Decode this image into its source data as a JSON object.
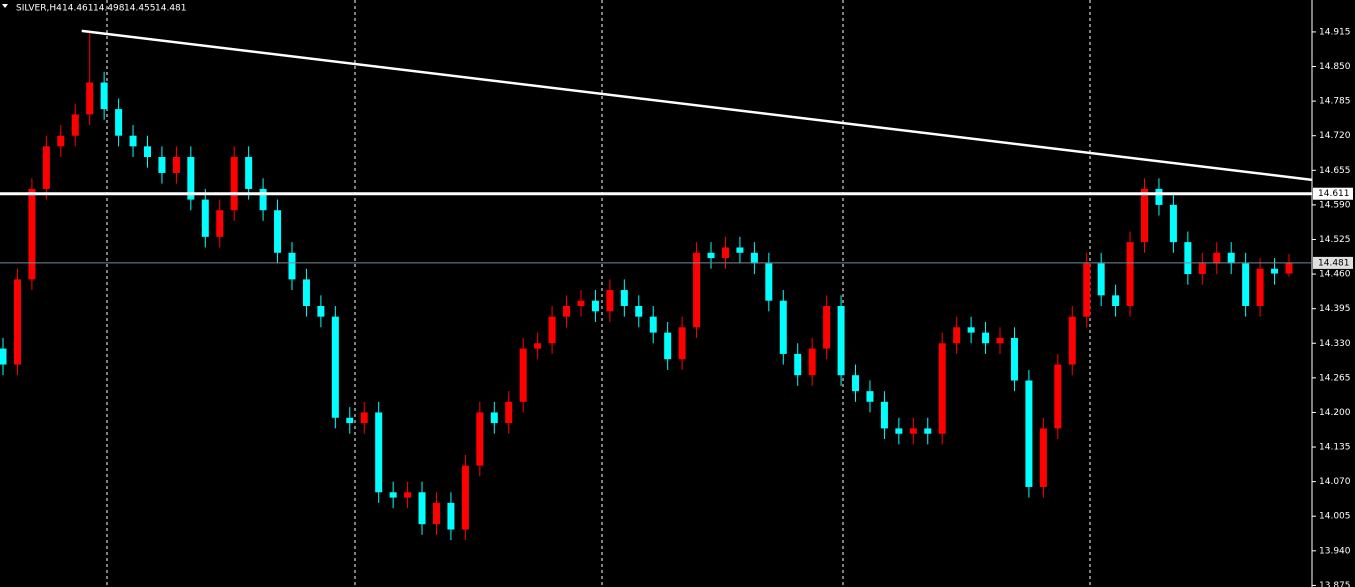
{
  "chart_data": {
    "type": "candlestick",
    "title": "SILVER,H4",
    "up_color": "#ff0000",
    "down_color": "#00ffff",
    "open": [
      14.32,
      14.29,
      14.45,
      14.62,
      14.7,
      14.72,
      14.76,
      14.82,
      14.77,
      14.72,
      14.7,
      14.68,
      14.65,
      14.68,
      14.6,
      14.53,
      14.58,
      14.68,
      14.62,
      14.58,
      14.5,
      14.45,
      14.4,
      14.38,
      14.19,
      14.18,
      14.2,
      14.05,
      14.04,
      14.05,
      13.99,
      14.03,
      13.98,
      14.1,
      14.2,
      14.18,
      14.22,
      14.32,
      14.33,
      14.38,
      14.4,
      14.41,
      14.39,
      14.43,
      14.4,
      14.38,
      14.35,
      14.3,
      14.36,
      14.5,
      14.49,
      14.51,
      14.5,
      14.48,
      14.41,
      14.31,
      14.27,
      14.32,
      14.4,
      14.27,
      14.24,
      14.22,
      14.17,
      14.16,
      14.17,
      14.16,
      14.33,
      14.36,
      14.35,
      14.33,
      14.34,
      14.26,
      14.06,
      14.17,
      14.29,
      14.38,
      14.48,
      14.42,
      14.4,
      14.52,
      14.62,
      14.59,
      14.52,
      14.46,
      14.48,
      14.5,
      14.48,
      14.4,
      14.47,
      14.461
    ],
    "high": [
      14.34,
      14.47,
      14.64,
      14.72,
      14.74,
      14.78,
      14.917,
      14.84,
      14.79,
      14.74,
      14.72,
      14.7,
      14.7,
      14.7,
      14.62,
      14.6,
      14.7,
      14.7,
      14.64,
      14.6,
      14.52,
      14.47,
      14.42,
      14.4,
      14.21,
      14.22,
      14.22,
      14.07,
      14.07,
      14.07,
      14.05,
      14.05,
      14.12,
      14.22,
      14.22,
      14.24,
      14.34,
      14.35,
      14.4,
      14.42,
      14.43,
      14.43,
      14.45,
      14.45,
      14.42,
      14.4,
      14.37,
      14.38,
      14.52,
      14.52,
      14.53,
      14.53,
      14.52,
      14.5,
      14.43,
      14.33,
      14.34,
      14.42,
      14.42,
      14.29,
      14.26,
      14.24,
      14.19,
      14.19,
      14.19,
      14.35,
      14.38,
      14.38,
      14.37,
      14.36,
      14.36,
      14.28,
      14.19,
      14.31,
      14.4,
      14.5,
      14.5,
      14.44,
      14.54,
      14.64,
      14.64,
      14.61,
      14.54,
      14.5,
      14.52,
      14.52,
      14.5,
      14.49,
      14.49,
      14.498
    ],
    "low": [
      14.27,
      14.27,
      14.43,
      14.6,
      14.68,
      14.7,
      14.74,
      14.75,
      14.7,
      14.68,
      14.66,
      14.63,
      14.63,
      14.58,
      14.51,
      14.51,
      14.56,
      14.6,
      14.56,
      14.48,
      14.43,
      14.38,
      14.36,
      14.17,
      14.16,
      14.16,
      14.03,
      14.02,
      14.02,
      13.97,
      13.97,
      13.96,
      13.96,
      14.08,
      14.16,
      14.16,
      14.2,
      14.3,
      14.31,
      14.36,
      14.38,
      14.37,
      14.37,
      14.38,
      14.36,
      14.33,
      14.28,
      14.28,
      14.34,
      14.47,
      14.47,
      14.48,
      14.46,
      14.39,
      14.29,
      14.25,
      14.25,
      14.3,
      14.25,
      14.22,
      14.2,
      14.15,
      14.14,
      14.14,
      14.14,
      14.14,
      14.31,
      14.33,
      14.31,
      14.31,
      14.24,
      14.04,
      14.04,
      14.15,
      14.27,
      14.36,
      14.4,
      14.38,
      14.38,
      14.5,
      14.57,
      14.5,
      14.44,
      14.44,
      14.46,
      14.46,
      14.38,
      14.38,
      14.44,
      14.455
    ],
    "close": [
      14.29,
      14.45,
      14.62,
      14.7,
      14.72,
      14.76,
      14.82,
      14.77,
      14.72,
      14.7,
      14.68,
      14.65,
      14.68,
      14.6,
      14.53,
      14.58,
      14.68,
      14.62,
      14.58,
      14.5,
      14.45,
      14.4,
      14.38,
      14.19,
      14.18,
      14.2,
      14.05,
      14.04,
      14.05,
      13.99,
      14.03,
      13.98,
      14.1,
      14.2,
      14.18,
      14.22,
      14.32,
      14.33,
      14.38,
      14.4,
      14.41,
      14.39,
      14.43,
      14.4,
      14.38,
      14.35,
      14.3,
      14.36,
      14.5,
      14.49,
      14.51,
      14.5,
      14.48,
      14.41,
      14.31,
      14.27,
      14.32,
      14.4,
      14.27,
      14.24,
      14.22,
      14.17,
      14.16,
      14.17,
      14.16,
      14.33,
      14.36,
      14.35,
      14.33,
      14.34,
      14.26,
      14.06,
      14.17,
      14.29,
      14.38,
      14.48,
      14.42,
      14.4,
      14.52,
      14.62,
      14.59,
      14.52,
      14.46,
      14.48,
      14.5,
      14.48,
      14.4,
      14.47,
      14.461,
      14.481
    ],
    "ylim": [
      13.872,
      14.975
    ],
    "yticks": [
      14.915,
      {
        "value": 14.85,
        "label": "14.850"
      },
      14.785,
      {
        "value": 14.72,
        "label": "14.720"
      },
      14.655,
      {
        "value": 14.59,
        "label": "14.590"
      },
      14.525,
      {
        "value": 14.46,
        "label": "14.460"
      },
      14.395,
      {
        "value": 14.33,
        "label": "14.330"
      },
      14.265,
      {
        "value": 14.2,
        "label": "14.200"
      },
      14.135,
      {
        "value": 14.07,
        "label": "14.070"
      },
      14.005,
      {
        "value": 13.94,
        "label": "13.940"
      },
      13.875
    ],
    "trendline": [
      14.917,
      14.637
    ],
    "hline": 14.611,
    "bid": 14.481
  }
}
